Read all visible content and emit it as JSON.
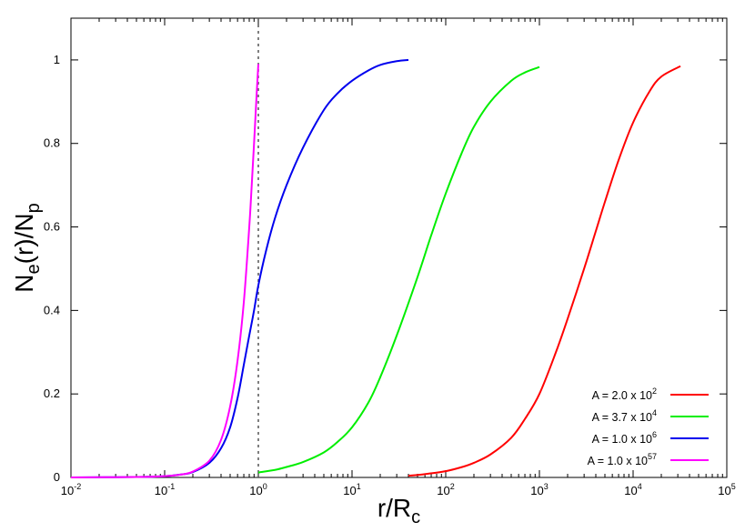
{
  "chart_data": {
    "type": "line",
    "x_scale": "log",
    "xlim": [
      0.01,
      100000
    ],
    "ylim": [
      0,
      1.1
    ],
    "grid": false,
    "legend_position": "bottom-right",
    "x_axis_label": {
      "base": "r/R",
      "sub": "c"
    },
    "y_axis_label": {
      "parts": [
        {
          "t": "N",
          "s": ""
        },
        {
          "t": "e",
          "s": "sub"
        },
        {
          "t": "(r)/N",
          "s": ""
        },
        {
          "t": "p",
          "s": "sub"
        }
      ]
    },
    "x_ticks": [
      {
        "value": 0.01,
        "base": "10",
        "exp": "-2"
      },
      {
        "value": 0.1,
        "base": "10",
        "exp": "-1"
      },
      {
        "value": 1,
        "base": "10",
        "exp": "0"
      },
      {
        "value": 10,
        "base": "10",
        "exp": "1"
      },
      {
        "value": 100,
        "base": "10",
        "exp": "2"
      },
      {
        "value": 1000,
        "base": "10",
        "exp": "3"
      },
      {
        "value": 10000,
        "base": "10",
        "exp": "4"
      },
      {
        "value": 100000,
        "base": "10",
        "exp": "5"
      }
    ],
    "y_ticks": [
      {
        "value": 0,
        "label": "0"
      },
      {
        "value": 0.2,
        "label": "0.2"
      },
      {
        "value": 0.4,
        "label": "0.4"
      },
      {
        "value": 0.6,
        "label": "0.6"
      },
      {
        "value": 0.8,
        "label": "0.8"
      },
      {
        "value": 1,
        "label": "1"
      }
    ],
    "reference_line": {
      "x": 1,
      "style": "dotted",
      "color": "#555555"
    },
    "series": [
      {
        "name": "A = 2.0 x 10^2",
        "legend_prefix": "A = 2.0 x 10",
        "legend_exp": "2",
        "color": "#ff0000",
        "x": [
          40,
          60,
          100,
          150,
          200,
          300,
          500,
          700,
          1000,
          1500,
          2000,
          3000,
          4000,
          5000,
          7000,
          10000,
          15000,
          20000,
          32000
        ],
        "y": [
          0.004,
          0.008,
          0.015,
          0.025,
          0.035,
          0.055,
          0.095,
          0.14,
          0.2,
          0.3,
          0.38,
          0.5,
          0.59,
          0.66,
          0.76,
          0.85,
          0.925,
          0.96,
          0.985
        ]
      },
      {
        "name": "A = 3.7 x 10^4",
        "legend_prefix": "A = 3.7 x 10",
        "legend_exp": "4",
        "color": "#00ee00",
        "x": [
          1,
          1.5,
          2,
          3,
          5,
          7,
          10,
          15,
          20,
          30,
          50,
          70,
          100,
          150,
          200,
          300,
          500,
          700,
          1000
        ],
        "y": [
          0.012,
          0.018,
          0.025,
          0.037,
          0.06,
          0.085,
          0.12,
          0.18,
          0.24,
          0.34,
          0.48,
          0.58,
          0.68,
          0.78,
          0.84,
          0.9,
          0.95,
          0.97,
          0.983
        ]
      },
      {
        "name": "A = 1.0 x 10^6",
        "legend_prefix": "A = 1.0 x 10",
        "legend_exp": "6",
        "color": "#0000ee",
        "x": [
          0.01,
          0.05,
          0.1,
          0.15,
          0.2,
          0.3,
          0.4,
          0.5,
          0.6,
          0.7,
          0.8,
          0.9,
          1,
          1.2,
          1.5,
          2,
          3,
          5,
          7,
          10,
          15,
          20,
          30,
          40
        ],
        "y": [
          0,
          0.001,
          0.003,
          0.007,
          0.013,
          0.035,
          0.07,
          0.12,
          0.19,
          0.27,
          0.34,
          0.4,
          0.46,
          0.54,
          0.62,
          0.7,
          0.79,
          0.88,
          0.92,
          0.95,
          0.975,
          0.988,
          0.997,
          1.0
        ]
      },
      {
        "name": "A = 1.0 x 10^57",
        "legend_prefix": "A = 1.0 x 10",
        "legend_exp": "57",
        "color": "#ff00ff",
        "x": [
          0.01,
          0.05,
          0.1,
          0.15,
          0.2,
          0.3,
          0.4,
          0.5,
          0.6,
          0.7,
          0.8,
          0.85,
          0.9,
          0.95,
          1.0
        ],
        "y": [
          0,
          0.001,
          0.003,
          0.007,
          0.014,
          0.04,
          0.09,
          0.17,
          0.28,
          0.42,
          0.6,
          0.7,
          0.8,
          0.9,
          0.99
        ]
      }
    ]
  }
}
